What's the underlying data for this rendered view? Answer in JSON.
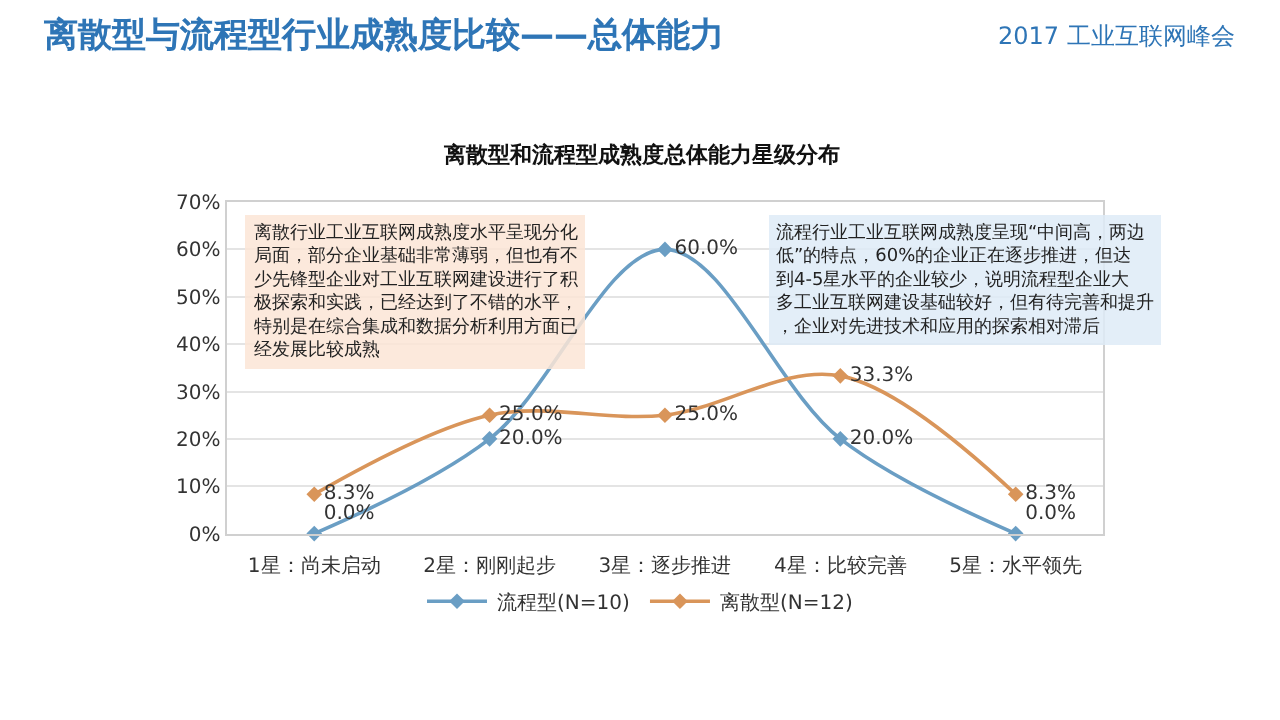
{
  "chart_data": {
    "type": "line",
    "title": "离散型与流程型行业成熟度比较——总体能力",
    "subtitle": "离散型和流程型成熟度总体能力星级分布",
    "categories": [
      "1星：尚未启动",
      "2星：刚刚起步",
      "3星：逐步推进",
      "4星：比较完善",
      "5星：水平领先"
    ],
    "series": [
      {
        "name": "流程型(N=10)",
        "color": "#6a9ec4",
        "values": [
          0.0,
          20.0,
          60.0,
          20.0,
          0.0
        ],
        "value_labels": [
          "0.0%",
          "20.0%",
          "60.0%",
          "20.0%",
          "0.0%"
        ]
      },
      {
        "name": "离散型(N=12)",
        "color": "#d9955a",
        "values": [
          8.3,
          25.0,
          25.0,
          33.3,
          8.3
        ],
        "value_labels": [
          "8.3%",
          "25.0%",
          "25.0%",
          "33.3%",
          "8.3%"
        ]
      }
    ],
    "ylim": [
      0,
      70
    ],
    "yticks": [
      {
        "value": 0,
        "label": "0%"
      },
      {
        "value": 10,
        "label": "10%"
      },
      {
        "value": 20,
        "label": "20%"
      },
      {
        "value": 30,
        "label": "30%"
      },
      {
        "value": 40,
        "label": "40%"
      },
      {
        "value": 50,
        "label": "50%"
      },
      {
        "value": 60,
        "label": "60%"
      },
      {
        "value": 70,
        "label": "70%"
      }
    ],
    "grid": "y",
    "legend": "bottom",
    "marker": "diamond",
    "line_style": "solid",
    "annotations": [
      "2017 工业互联网峰会",
      "离散行业工业互联网成熟度水平呈现分化局面，部分企业基础非常薄弱，但也有不少先锋型企业对工业互联网建设进行了积极探索和实践，已经达到了不错的水平，特别是在综合集成和数据分析利用方面已经发展比较成熟",
      "流程行业工业互联网成熟度呈现“中间高，两边低”的特点，60%的企业正在逐步推进，但达到4-5星水平的企业较少，说明流程型企业大多工业互联网建设基础较好，但有待完善和提升，企业对先进技术和应用的探索相对滞后"
    ]
  }
}
